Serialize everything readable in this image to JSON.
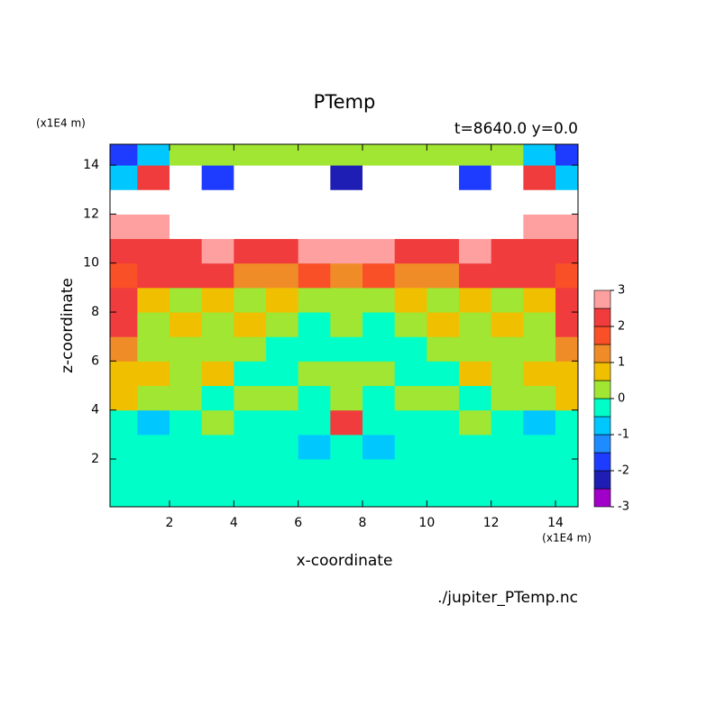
{
  "chart_data": {
    "type": "contour",
    "title": "PTemp",
    "subtitle": "t=8640.0 y=0.0",
    "x_label": "x-coordinate",
    "y_label": "z-coordinate",
    "x_unit": "(x1E4 m)",
    "y_unit": "(x1E4 m)",
    "source": "./jupiter_PTemp.nc",
    "xlim": [
      0.15,
      14.7
    ],
    "ylim": [
      0.05,
      14.85
    ],
    "xticks": [
      2,
      4,
      6,
      8,
      10,
      12,
      14
    ],
    "yticks": [
      2,
      4,
      6,
      8,
      10,
      12,
      14
    ],
    "x": [
      0.5,
      1.5,
      2.5,
      3.5,
      4.5,
      5.5,
      6.5,
      7.5,
      8.5,
      9.5,
      10.5,
      11.5,
      12.5,
      13.5,
      14.5
    ],
    "y": [
      0.5,
      1.5,
      2.5,
      3.5,
      4.5,
      5.5,
      6.5,
      7.5,
      8.5,
      9.5,
      10.5,
      11.5,
      12.5,
      13.5,
      14.5
    ],
    "z": [
      [
        -0.2,
        -0.2,
        -0.2,
        -0.2,
        -0.2,
        -0.2,
        -0.2,
        -0.2,
        -0.2,
        -0.2,
        -0.2,
        -0.2,
        -0.2,
        -0.2,
        -0.2
      ],
      [
        -0.2,
        -0.2,
        -0.2,
        -0.2,
        -0.2,
        -0.2,
        -0.2,
        -0.2,
        -0.2,
        -0.2,
        -0.2,
        -0.2,
        -0.2,
        -0.2,
        -0.2
      ],
      [
        -0.2,
        -0.2,
        -0.2,
        -0.2,
        -0.2,
        -0.2,
        -0.7,
        -0.2,
        -0.7,
        -0.2,
        -0.2,
        -0.2,
        -0.2,
        -0.2,
        -0.2
      ],
      [
        -0.2,
        -0.7,
        -0.2,
        0.3,
        -0.2,
        -0.2,
        -0.2,
        2.2,
        -0.2,
        -0.2,
        -0.2,
        0.3,
        -0.2,
        -0.7,
        -0.2
      ],
      [
        0.7,
        0.2,
        0.3,
        -0.2,
        0.3,
        0.2,
        -0.2,
        0.3,
        -0.2,
        0.2,
        0.3,
        -0.2,
        0.3,
        0.2,
        0.7
      ],
      [
        0.7,
        0.7,
        0.2,
        0.7,
        -0.2,
        -0.2,
        0.3,
        0.3,
        0.3,
        -0.2,
        -0.2,
        0.7,
        0.2,
        0.7,
        0.7
      ],
      [
        1.2,
        0.2,
        0.3,
        0.3,
        0.3,
        -0.2,
        -0.2,
        -0.2,
        -0.2,
        -0.2,
        0.3,
        0.3,
        0.3,
        0.2,
        1.2
      ],
      [
        2.2,
        0.3,
        0.7,
        0.3,
        0.7,
        0.3,
        -0.2,
        0.3,
        -0.2,
        0.3,
        0.7,
        0.3,
        0.7,
        0.3,
        2.2
      ],
      [
        2.2,
        0.7,
        0.3,
        0.7,
        0.3,
        0.7,
        0.3,
        0.2,
        0.3,
        0.7,
        0.3,
        0.7,
        0.3,
        0.7,
        2.2
      ],
      [
        1.5,
        2.2,
        2.2,
        2.2,
        1.2,
        1.2,
        1.5,
        1.2,
        1.5,
        1.2,
        1.2,
        2.2,
        2.2,
        2.2,
        1.5
      ],
      [
        2.2,
        2.2,
        2.2,
        2.5,
        2.2,
        2.2,
        2.5,
        2.7,
        2.5,
        2.2,
        2.2,
        2.5,
        2.2,
        2.2,
        2.2
      ],
      [
        2.5,
        2.5,
        3,
        3,
        3.5,
        3.5,
        3.5,
        3.5,
        3.5,
        3.5,
        3.5,
        3,
        3,
        2.5,
        2.5
      ],
      [
        3.5,
        3.5,
        3.5,
        3.5,
        3.5,
        3.5,
        3.5,
        3.5,
        3.5,
        3.5,
        3.5,
        3.5,
        3.5,
        3.5,
        3.5
      ],
      [
        -1,
        2,
        3.5,
        -2,
        3.5,
        3.5,
        3.5,
        -2.5,
        3.5,
        3.5,
        3.5,
        -2,
        3.5,
        2,
        -1
      ],
      [
        -2,
        -1,
        0,
        0.3,
        0.3,
        0.3,
        0.3,
        0.3,
        0.3,
        0.3,
        0.3,
        0.3,
        0,
        -1,
        -2
      ]
    ],
    "levels": [
      -3,
      -2.5,
      -2,
      -1.5,
      -1,
      -0.5,
      0,
      0.5,
      1,
      1.5,
      2,
      2.5,
      3
    ],
    "colors": [
      "#a000c8",
      "#1e1eb4",
      "#1e3cff",
      "#1e8cff",
      "#00c8ff",
      "#00ffc8",
      "#a0e632",
      "#f0c000",
      "#f08c28",
      "#fa5028",
      "#f03c3c",
      "#ffa0a0"
    ],
    "colorbar_ticks": [
      -3,
      -2,
      -1,
      0,
      1,
      2,
      3
    ]
  }
}
